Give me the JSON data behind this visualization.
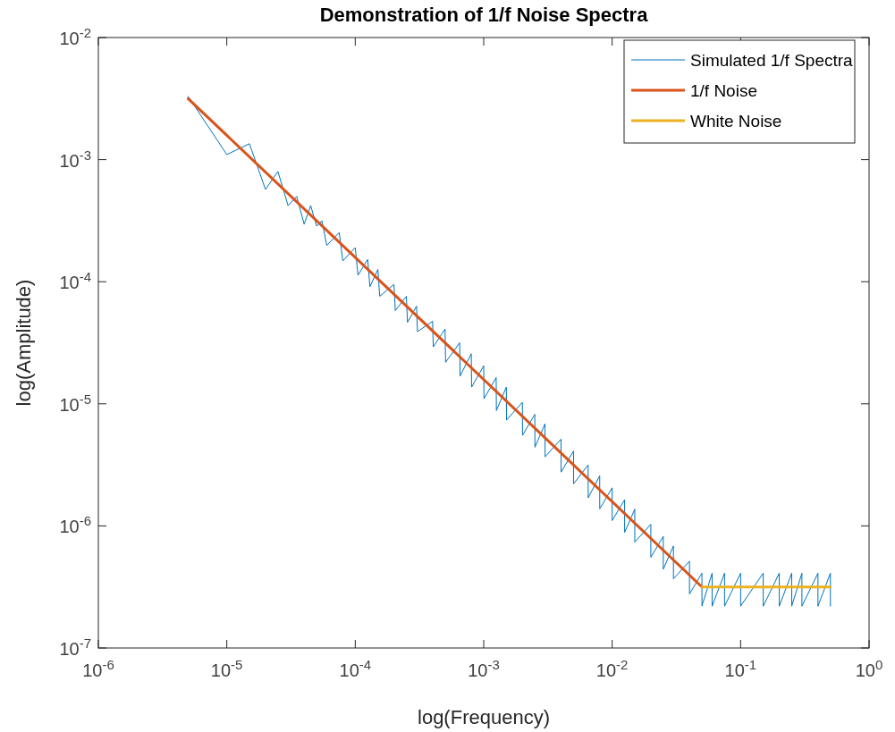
{
  "chart_data": {
    "type": "line",
    "title": "Demonstration of 1/f Noise Spectra",
    "xlabel": "log(Frequency)",
    "ylabel": "log(Amplitude)",
    "log": "xy",
    "grid": false,
    "legend": "top right",
    "xlim": [
      1e-06,
      1
    ],
    "ylim": [
      1e-07,
      0.01
    ],
    "xticks": [
      {
        "value": 1e-06,
        "label": "10$^{-6}$"
      },
      {
        "value": 1e-05,
        "label": "10$^{-5}$"
      },
      {
        "value": 0.0001,
        "label": "10$^{-4}$"
      },
      {
        "value": 0.001,
        "label": "10$^{-3}$"
      },
      {
        "value": 0.01,
        "label": "10$^{-2}$"
      },
      {
        "value": 0.1,
        "label": "10$^{-1}$"
      },
      {
        "value": 1,
        "label": "10$^{0}$"
      }
    ],
    "yticks": [
      {
        "value": 1e-07,
        "label": "10$^{-7}$"
      },
      {
        "value": 1e-06,
        "label": "10$^{-6}$"
      },
      {
        "value": 1e-05,
        "label": "10$^{-5}$"
      },
      {
        "value": 0.0001,
        "label": "10$^{-4}$"
      },
      {
        "value": 0.001,
        "label": "10$^{-3}$"
      },
      {
        "value": 0.01,
        "label": "10$^{-2}$"
      }
    ],
    "series": [
      {
        "name": "Simulated 1/f Spectra",
        "color": "#0072bd",
        "x": [
          5e-06,
          1e-05,
          1.5e-05,
          2e-05,
          2.5e-05,
          3e-05,
          3.5e-05,
          4e-05,
          4.5e-05,
          5e-05,
          5.5e-05,
          6e-05,
          7.5e-05,
          8e-05,
          0.0001,
          0.000105,
          0.000125,
          0.00013,
          0.00015,
          0.000155,
          0.0002,
          0.000205,
          0.00025,
          0.000255,
          0.0003,
          0.000305,
          0.0004,
          0.000405,
          0.0005,
          0.000505,
          0.00065,
          0.000655,
          0.0008,
          0.000805,
          0.001,
          0.001005,
          0.00125,
          0.001255,
          0.0015,
          0.001505,
          0.002,
          0.002005,
          0.0025,
          0.002505,
          0.003,
          0.003005,
          0.004,
          0.004005,
          0.005,
          0.005005,
          0.0065,
          0.006505,
          0.008,
          0.008005,
          0.01,
          0.010005,
          0.0125,
          0.012505,
          0.015,
          0.015005,
          0.02,
          0.020005,
          0.025,
          0.025005,
          0.03,
          0.030005,
          0.04,
          0.040005,
          0.05,
          0.050005,
          0.06,
          0.060005,
          0.075,
          0.075005,
          0.1,
          0.100005,
          0.15,
          0.150005,
          0.2,
          0.200005,
          0.25,
          0.250005,
          0.3,
          0.300005,
          0.4,
          0.400005,
          0.499995,
          0.5
        ],
        "values": [
          0.0033,
          0.0011,
          0.00135,
          0.00057,
          0.0008,
          0.00042,
          0.0005,
          0.000296,
          0.00042,
          0.000285,
          0.000316,
          0.000198,
          0.000253,
          0.000148,
          0.00019,
          0.000113,
          0.000152,
          9.1e-05,
          0.000126,
          7.6e-05,
          9.5e-05,
          5.8e-05,
          7.6e-05,
          4.65e-05,
          6.3e-05,
          3.9e-05,
          4.74e-05,
          2.93e-05,
          4.1e-05,
          2.19e-05,
          3.16e-05,
          1.69e-05,
          2.57e-05,
          1.37e-05,
          2.05e-05,
          1.1e-05,
          1.64e-05,
          8.8e-06,
          1.37e-05,
          7.35e-06,
          1.03e-05,
          5.52e-06,
          8.2e-06,
          4.41e-06,
          6.85e-06,
          3.68e-06,
          5.14e-06,
          2.76e-06,
          4.1e-06,
          2.21e-06,
          3.16e-06,
          1.7e-06,
          2.57e-06,
          1.38e-06,
          2.05e-06,
          1.106e-06,
          1.64e-06,
          8.85e-07,
          1.37e-06,
          7.37e-07,
          1.03e-06,
          5.53e-07,
          8.2e-07,
          4.42e-07,
          6.85e-07,
          3.69e-07,
          5.14e-07,
          2.77e-07,
          4.1e-07,
          2.21e-07,
          4.1e-07,
          2.2e-07,
          4.1e-07,
          2.2e-07,
          4.1e-07,
          2.2e-07,
          4.1e-07,
          2.2e-07,
          4.1e-07,
          2.2e-07,
          4.1e-07,
          2.2e-07,
          4.1e-07,
          2.2e-07,
          4.1e-07,
          2.2e-07,
          4.1e-07,
          2.2e-07
        ]
      },
      {
        "name": "1/f Noise",
        "color": "#d95319",
        "x": [
          5e-06,
          0.05
        ],
        "values": [
          0.00316,
          3.16e-07
        ]
      },
      {
        "name": "White Noise",
        "color": "#edb120",
        "x": [
          0.05,
          0.5
        ],
        "values": [
          3.16e-07,
          3.16e-07
        ]
      }
    ]
  }
}
